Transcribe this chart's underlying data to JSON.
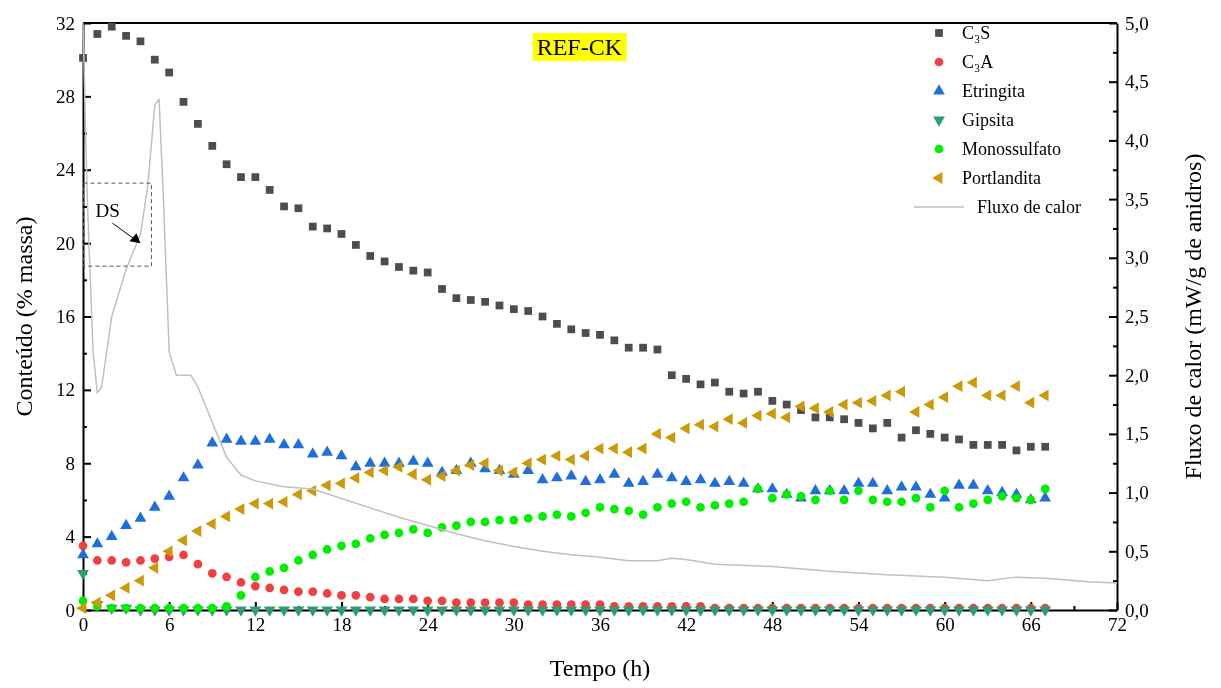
{
  "chart_data": {
    "type": "scatter",
    "title": "REF-CK",
    "xlabel": "Tempo (h)",
    "ylabel": "Conteúdo (% massa)",
    "y2label": "Fluxo de calor (mW/g de anidros)",
    "x": [
      0,
      1,
      2,
      3,
      4,
      5,
      6,
      7,
      8,
      9,
      10,
      11,
      12,
      13,
      14,
      15,
      16,
      17,
      18,
      19,
      20,
      21,
      22,
      23,
      24,
      25,
      26,
      27,
      28,
      29,
      30,
      31,
      32,
      33,
      34,
      35,
      36,
      37,
      38,
      39,
      40,
      41,
      42,
      43,
      44,
      45,
      46,
      47,
      48,
      49,
      50,
      51,
      52,
      53,
      54,
      55,
      56,
      57,
      58,
      59,
      60,
      61,
      62,
      63,
      64,
      65,
      66,
      67
    ],
    "xlim": [
      0,
      72
    ],
    "xticks": [
      0,
      {
        "value": 3,
        "label": null
      },
      6,
      {
        "value": 9,
        "label": null
      },
      12,
      {
        "value": 15,
        "label": null
      },
      18,
      {
        "value": 21,
        "label": null
      },
      24,
      {
        "value": 27,
        "label": null
      },
      30,
      {
        "value": 33,
        "label": null
      },
      36,
      {
        "value": 39,
        "label": null
      },
      42,
      {
        "value": 45,
        "label": null
      },
      48,
      {
        "value": 51,
        "label": null
      },
      54,
      {
        "value": 57,
        "label": null
      },
      60,
      {
        "value": 63,
        "label": null
      },
      66,
      {
        "value": 69,
        "label": null
      },
      72
    ],
    "ylim": [
      0,
      32
    ],
    "yticks": [
      0,
      {
        "value": 2,
        "label": null
      },
      4,
      {
        "value": 6,
        "label": null
      },
      8,
      {
        "value": 10,
        "label": null
      },
      12,
      {
        "value": 14,
        "label": null
      },
      16,
      {
        "value": 18,
        "label": null
      },
      20,
      {
        "value": 22,
        "label": null
      },
      24,
      {
        "value": 26,
        "label": null
      },
      28,
      {
        "value": 30,
        "label": null
      },
      32
    ],
    "y2lim": [
      0,
      5
    ],
    "y2ticks": [
      {
        "value": 0,
        "label": "0,0"
      },
      {
        "value": 0.25,
        "label": null
      },
      {
        "value": 0.5,
        "label": "0,5"
      },
      {
        "value": 0.75,
        "label": null
      },
      {
        "value": 1,
        "label": "1,0"
      },
      {
        "value": 1.25,
        "label": null
      },
      {
        "value": 1.5,
        "label": "1,5"
      },
      {
        "value": 1.75,
        "label": null
      },
      {
        "value": 2,
        "label": "2,0"
      },
      {
        "value": 2.25,
        "label": null
      },
      {
        "value": 2.5,
        "label": "2,5"
      },
      {
        "value": 2.75,
        "label": null
      },
      {
        "value": 3,
        "label": "3,0"
      },
      {
        "value": 3.25,
        "label": null
      },
      {
        "value": 3.5,
        "label": "3,5"
      },
      {
        "value": 3.75,
        "label": null
      },
      {
        "value": 4,
        "label": "4,0"
      },
      {
        "value": 4.25,
        "label": null
      },
      {
        "value": 4.5,
        "label": "4,5"
      },
      {
        "value": 4.75,
        "label": null
      },
      {
        "value": 5,
        "label": "5,0"
      }
    ],
    "legend": "top right",
    "grid": false,
    "annotations": [
      {
        "text": "DS",
        "x": 4.0,
        "y": 20.0
      }
    ],
    "series": [
      {
        "name": "C₃S",
        "color": "#4d4d4d",
        "marker": "square",
        "values": [
          30.1,
          31.4,
          31.8,
          31.3,
          31.0,
          30.0,
          29.3,
          27.7,
          26.5,
          25.3,
          24.3,
          23.6,
          23.6,
          22.9,
          22.0,
          21.9,
          20.9,
          20.8,
          20.5,
          19.9,
          19.3,
          19.0,
          18.7,
          18.5,
          18.4,
          17.5,
          17.0,
          16.9,
          16.8,
          16.6,
          16.4,
          16.3,
          16.0,
          15.6,
          15.3,
          15.1,
          15.0,
          14.7,
          14.3,
          14.3,
          14.2,
          12.8,
          12.6,
          12.3,
          12.4,
          11.9,
          11.8,
          11.9,
          11.4,
          11.2,
          10.9,
          10.5,
          10.5,
          10.4,
          10.2,
          9.9,
          10.2,
          9.4,
          9.8,
          9.6,
          9.4,
          9.3,
          9.0,
          9.0,
          9.0,
          8.7,
          8.9,
          8.9
        ]
      },
      {
        "name": "C₃A",
        "color": "#f04040",
        "marker": "circle",
        "values": [
          3.5,
          2.7,
          2.7,
          2.6,
          2.7,
          2.8,
          2.9,
          3.0,
          2.5,
          2.0,
          1.8,
          1.5,
          1.3,
          1.2,
          1.1,
          1.0,
          1.0,
          0.9,
          0.8,
          0.8,
          0.7,
          0.6,
          0.6,
          0.6,
          0.5,
          0.5,
          0.4,
          0.4,
          0.4,
          0.4,
          0.4,
          0.3,
          0.3,
          0.3,
          0.3,
          0.3,
          0.3,
          0.2,
          0.2,
          0.2,
          0.2,
          0.2,
          0.2,
          0.2,
          0.1,
          0.1,
          0.1,
          0.1,
          0.1,
          0.1,
          0.1,
          0.1,
          0.1,
          0.1,
          0.1,
          0.1,
          0.1,
          0.1,
          0.1,
          0.1,
          0.1,
          0.1,
          0.1,
          0.1,
          0.1,
          0.1,
          0.1,
          0.1
        ]
      },
      {
        "name": "Etringita",
        "color": "#1e6fdc",
        "marker": "triangle",
        "values": [
          3.0,
          3.6,
          4.0,
          4.6,
          5.0,
          5.6,
          6.2,
          7.2,
          7.9,
          9.1,
          9.3,
          9.2,
          9.2,
          9.3,
          9.0,
          9.0,
          8.5,
          8.6,
          8.4,
          7.8,
          8.0,
          8.0,
          8.0,
          8.1,
          8.0,
          7.5,
          7.6,
          8.0,
          7.7,
          7.6,
          7.4,
          7.6,
          7.1,
          7.2,
          7.3,
          7.0,
          7.1,
          7.4,
          6.9,
          7.0,
          7.4,
          7.2,
          7.0,
          7.1,
          6.9,
          7.0,
          6.9,
          6.6,
          6.6,
          6.3,
          6.1,
          6.5,
          6.5,
          6.5,
          6.9,
          6.9,
          6.5,
          6.7,
          6.7,
          6.3,
          6.1,
          6.8,
          6.8,
          6.5,
          6.4,
          6.3,
          6.0,
          6.1
        ]
      },
      {
        "name": "Gipsita",
        "color": "#2e9e6e",
        "marker": "triangle-down",
        "values": [
          2.0,
          0.3,
          0.1,
          0.1,
          0,
          0,
          0,
          0,
          0,
          0,
          0,
          0,
          0,
          0,
          0,
          0,
          0,
          0,
          0,
          0,
          0,
          0,
          0,
          0,
          0,
          0,
          0,
          0,
          0,
          0,
          0,
          0,
          0,
          0,
          0,
          0,
          0,
          0,
          0,
          0,
          0,
          0,
          0,
          0,
          0,
          0,
          0,
          0,
          0,
          0,
          0,
          0,
          0,
          0,
          0,
          0,
          0,
          0,
          0,
          0,
          0,
          0,
          0,
          0,
          0,
          0,
          0,
          0
        ]
      },
      {
        "name": "Monossulfato",
        "color": "#00ee00",
        "marker": "circle",
        "values": [
          0.5,
          0.2,
          0.1,
          0.1,
          0.1,
          0.1,
          0.1,
          0.1,
          0.1,
          0.1,
          0.2,
          0.8,
          1.8,
          2.1,
          2.3,
          2.7,
          3.0,
          3.3,
          3.5,
          3.6,
          3.9,
          4.1,
          4.2,
          4.4,
          4.2,
          4.5,
          4.6,
          4.8,
          4.8,
          4.9,
          4.9,
          5.0,
          5.1,
          5.2,
          5.1,
          5.3,
          5.6,
          5.5,
          5.4,
          5.2,
          5.6,
          5.8,
          5.9,
          5.6,
          5.7,
          5.8,
          5.9,
          6.6,
          6.1,
          6.3,
          6.2,
          6.0,
          6.5,
          6.0,
          6.5,
          6.0,
          5.9,
          5.9,
          6.1,
          5.6,
          6.5,
          5.6,
          5.8,
          6.0,
          6.2,
          6.1,
          6.0,
          6.6
        ]
      },
      {
        "name": "Portlandita",
        "color": "#cc9a06",
        "marker": "triangle-left",
        "values": [
          0.1,
          0.4,
          0.8,
          1.2,
          1.6,
          2.3,
          3.2,
          3.8,
          4.3,
          4.7,
          5.1,
          5.5,
          5.8,
          5.8,
          5.9,
          6.3,
          6.5,
          6.8,
          6.9,
          7.2,
          7.5,
          7.6,
          7.8,
          7.4,
          7.1,
          7.3,
          7.6,
          7.9,
          8.0,
          7.6,
          7.5,
          8.0,
          8.2,
          8.4,
          8.2,
          8.4,
          8.8,
          8.8,
          8.6,
          8.8,
          9.6,
          9.4,
          9.9,
          10.1,
          10.0,
          10.4,
          10.2,
          10.6,
          10.7,
          10.5,
          11.1,
          11.0,
          10.8,
          11.2,
          11.3,
          11.4,
          11.7,
          11.9,
          10.8,
          11.2,
          11.6,
          12.2,
          12.4,
          11.7,
          11.7,
          12.2,
          11.3,
          11.7
        ]
      },
      {
        "name": "Fluxo de calor",
        "type": "line",
        "axis": "y2",
        "color": "#c0c0c0",
        "marker": "none",
        "x": [
          0,
          0.3,
          0.7,
          1,
          1.3,
          2,
          3,
          4,
          4.5,
          5,
          5.3,
          5.6,
          6,
          6.5,
          7.5,
          8,
          9,
          10,
          11,
          12,
          14,
          16,
          18,
          20,
          22,
          24,
          26,
          28,
          30,
          32,
          34,
          36,
          38,
          40,
          41,
          42,
          44,
          48,
          52,
          56,
          60,
          63,
          65,
          67,
          70,
          72
        ],
        "values": [
          5.0,
          3.5,
          2.2,
          1.85,
          1.9,
          2.5,
          2.9,
          3.2,
          3.6,
          4.3,
          4.35,
          3.5,
          2.2,
          2.0,
          2.0,
          1.9,
          1.6,
          1.3,
          1.15,
          1.1,
          1.05,
          1.03,
          0.95,
          0.87,
          0.79,
          0.72,
          0.65,
          0.59,
          0.54,
          0.5,
          0.47,
          0.45,
          0.42,
          0.42,
          0.44,
          0.43,
          0.39,
          0.37,
          0.33,
          0.3,
          0.28,
          0.25,
          0.28,
          0.27,
          0.24,
          0.23
        ]
      }
    ]
  }
}
